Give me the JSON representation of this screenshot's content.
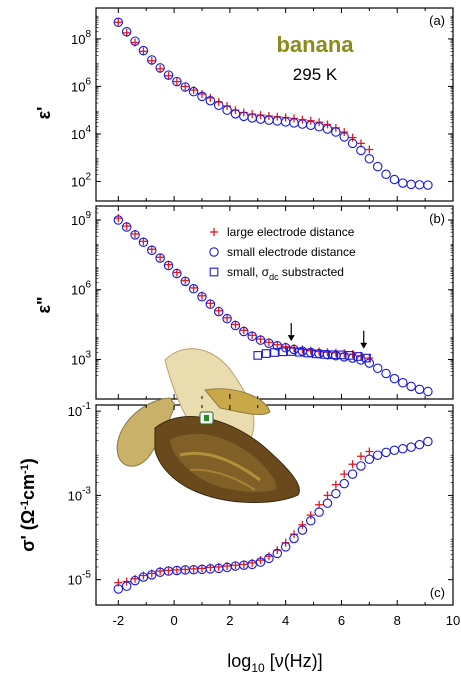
{
  "chart_data": [
    {
      "panel": "(a)",
      "type": "scatter",
      "title": "banana",
      "subtitle": "295 K",
      "xlabel": "log10 [ν(Hz)]",
      "ylabel": "ε'",
      "yscale": "log",
      "xlim": [
        -2.8,
        10
      ],
      "ylim": [
        15,
        2000000000
      ],
      "y_ticks": [
        {
          "v": 100,
          "label": "10",
          "exp": "2"
        },
        {
          "v": 10000,
          "label": "10",
          "exp": "4"
        },
        {
          "v": 1000000,
          "label": "10",
          "exp": "6"
        },
        {
          "v": 100000000,
          "label": "10",
          "exp": "8"
        }
      ],
      "series": [
        {
          "name": "large electrode distance",
          "marker": "plus",
          "color": "#e41a1c",
          "x": [
            -2.0,
            -1.7,
            -1.4,
            -1.1,
            -0.8,
            -0.5,
            -0.2,
            0.1,
            0.4,
            0.7,
            1.0,
            1.3,
            1.6,
            1.9,
            2.2,
            2.5,
            2.8,
            3.1,
            3.4,
            3.7,
            4.0,
            4.3,
            4.6,
            4.9,
            5.2,
            5.5,
            5.8,
            6.1,
            6.4,
            6.7,
            7.0
          ],
          "y": [
            500000000,
            180000000,
            70000000,
            30000000,
            12000000,
            5500000,
            2800000,
            1600000,
            1000000,
            700000,
            480000,
            330000,
            220000,
            150000,
            100000,
            80000,
            68000,
            62000,
            57000,
            53000,
            49000,
            45000,
            40000,
            36000,
            31000,
            25000,
            18000,
            12000,
            7000,
            4000,
            2200
          ]
        },
        {
          "name": "small electrode distance",
          "marker": "circle",
          "color": "#1a1adb",
          "x": [
            -2.0,
            -1.7,
            -1.4,
            -1.1,
            -0.8,
            -0.5,
            -0.2,
            0.1,
            0.4,
            0.7,
            1.0,
            1.3,
            1.6,
            1.9,
            2.2,
            2.5,
            2.8,
            3.1,
            3.4,
            3.7,
            4.0,
            4.3,
            4.6,
            4.9,
            5.2,
            5.5,
            5.8,
            6.1,
            6.4,
            6.7,
            7.0,
            7.3,
            7.6,
            7.9,
            8.2,
            8.5,
            8.8,
            9.1
          ],
          "y": [
            500000000,
            200000000,
            80000000,
            32000000,
            13000000,
            6000000,
            3000000,
            1600000,
            950000,
            600000,
            380000,
            250000,
            160000,
            100000,
            70000,
            55000,
            47000,
            42000,
            38000,
            35000,
            32000,
            29000,
            26000,
            23000,
            20000,
            16000,
            12000,
            7500,
            4000,
            2000,
            900,
            420,
            200,
            120,
            85,
            75,
            72,
            70
          ]
        }
      ]
    },
    {
      "panel": "(b)",
      "type": "scatter",
      "xlabel": "log10 [ν(Hz)]",
      "ylabel": "ε\"",
      "yscale": "log",
      "xlim": [
        -2.8,
        10
      ],
      "ylim": [
        20,
        4000000000
      ],
      "y_ticks": [
        {
          "v": 1000,
          "label": "10",
          "exp": "3"
        },
        {
          "v": 1000000,
          "label": "10",
          "exp": "6"
        },
        {
          "v": 1000000000,
          "label": "10",
          "exp": "9"
        }
      ],
      "arrows_x": [
        4.2,
        6.8
      ],
      "series": [
        {
          "name": "large electrode distance",
          "marker": "plus",
          "color": "#e41a1c",
          "x": [
            -2.0,
            -1.7,
            -1.4,
            -1.1,
            -0.8,
            -0.5,
            -0.2,
            0.1,
            0.4,
            0.7,
            1.0,
            1.3,
            1.6,
            1.9,
            2.2,
            2.5,
            2.8,
            3.1,
            3.4,
            3.7,
            4.0,
            4.3,
            4.6,
            4.9,
            5.2,
            5.5,
            5.8,
            6.1,
            6.4,
            6.7,
            7.0
          ],
          "y": [
            1200000000,
            550000000,
            250000000,
            120000000,
            55000000,
            25000000,
            12000000,
            5500000,
            2500000,
            1200000,
            550000,
            260000,
            125000,
            62000,
            32000,
            18000,
            11000,
            7500,
            5500,
            4300,
            3600,
            3100,
            2700,
            2400,
            2200,
            2050,
            1950,
            1850,
            1700,
            1450,
            1150
          ]
        },
        {
          "name": "small electrode distance",
          "marker": "circle",
          "color": "#1a1adb",
          "x": [
            -2.0,
            -1.7,
            -1.4,
            -1.1,
            -0.8,
            -0.5,
            -0.2,
            0.1,
            0.4,
            0.7,
            1.0,
            1.3,
            1.6,
            1.9,
            2.2,
            2.5,
            2.8,
            3.1,
            3.4,
            3.7,
            4.0,
            4.3,
            4.6,
            4.9,
            5.2,
            5.5,
            5.8,
            6.1,
            6.4,
            6.7,
            7.0,
            7.3,
            7.6,
            7.9,
            8.2,
            8.5,
            8.8,
            9.1
          ],
          "y": [
            1000000000,
            500000000,
            230000000,
            110000000,
            50000000,
            23000000,
            11000000,
            5000000,
            2300000,
            1100000,
            500000,
            240000,
            115000,
            57000,
            29000,
            16000,
            10000,
            6800,
            5000,
            3900,
            3200,
            2700,
            2300,
            2000,
            1800,
            1600,
            1450,
            1300,
            1150,
            950,
            700,
            420,
            250,
            150,
            100,
            70,
            52,
            42
          ]
        },
        {
          "name": "small, σdc substracted",
          "marker": "square",
          "color": "#1a1adb",
          "x": [
            3.0,
            3.3,
            3.6,
            3.9,
            4.2,
            4.5,
            4.8,
            5.1,
            5.4,
            5.7,
            6.0,
            6.3,
            6.6,
            6.9
          ],
          "y": [
            1500,
            1800,
            2000,
            2150,
            2200,
            2050,
            1900,
            1750,
            1650,
            1600,
            1580,
            1500,
            1350,
            1150
          ]
        }
      ],
      "legend": [
        {
          "marker": "plus",
          "text": "large electrode distance"
        },
        {
          "marker": "circle",
          "text": "small electrode distance"
        },
        {
          "marker": "square",
          "text": "small, σ",
          "sub": "dc",
          "after": " substracted"
        }
      ]
    },
    {
      "panel": "(c)",
      "type": "scatter",
      "xlabel": "log10 [ν(Hz)]",
      "ylabel": "σ' (Ω⁻¹cm⁻¹)",
      "yscale": "log",
      "xlim": [
        -2.8,
        10
      ],
      "ylim": [
        2.5e-06,
        0.14
      ],
      "y_ticks": [
        {
          "v": 1e-05,
          "label": "10",
          "exp": "-5"
        },
        {
          "v": 0.001,
          "label": "10",
          "exp": "-3"
        },
        {
          "v": 0.1,
          "label": "10",
          "exp": "-1"
        }
      ],
      "x_ticks": [
        -2,
        0,
        2,
        4,
        6,
        8,
        10
      ],
      "series": [
        {
          "name": "large electrode distance",
          "marker": "plus",
          "color": "#e41a1c",
          "x": [
            -2.0,
            -1.7,
            -1.4,
            -1.1,
            -0.8,
            -0.5,
            -0.2,
            0.1,
            0.4,
            0.7,
            1.0,
            1.3,
            1.6,
            1.9,
            2.2,
            2.5,
            2.8,
            3.1,
            3.4,
            3.7,
            4.0,
            4.3,
            4.6,
            4.9,
            5.2,
            5.5,
            5.8,
            6.1,
            6.4,
            6.7,
            7.0
          ],
          "y": [
            8.5e-06,
            9e-06,
            1.05e-05,
            1.25e-05,
            1.4e-05,
            1.6e-05,
            1.65e-05,
            1.7e-05,
            1.75e-05,
            1.8e-05,
            1.85e-05,
            1.95e-05,
            2e-05,
            2.1e-05,
            2.2e-05,
            2.3e-05,
            2.5e-05,
            2.9e-05,
            3.6e-05,
            5e-05,
            7.5e-05,
            0.00012,
            0.0002,
            0.00034,
            0.0006,
            0.001,
            0.0018,
            0.0032,
            0.0055,
            0.0085,
            0.011
          ]
        },
        {
          "name": "small electrode distance",
          "marker": "circle",
          "color": "#1a1adb",
          "x": [
            -2.0,
            -1.7,
            -1.4,
            -1.1,
            -0.8,
            -0.5,
            -0.2,
            0.1,
            0.4,
            0.7,
            1.0,
            1.3,
            1.6,
            1.9,
            2.2,
            2.5,
            2.8,
            3.1,
            3.4,
            3.7,
            4.0,
            4.3,
            4.6,
            4.9,
            5.2,
            5.5,
            5.8,
            6.1,
            6.4,
            6.7,
            7.0,
            7.3,
            7.6,
            7.9,
            8.2,
            8.5,
            8.8,
            9.1
          ],
          "y": [
            6e-06,
            7e-06,
            9.5e-06,
            1.15e-05,
            1.3e-05,
            1.5e-05,
            1.6e-05,
            1.65e-05,
            1.7e-05,
            1.72e-05,
            1.75e-05,
            1.8e-05,
            1.85e-05,
            1.95e-05,
            2.1e-05,
            2.2e-05,
            2.3e-05,
            2.6e-05,
            3.2e-05,
            4.2e-05,
            6e-05,
            9.5e-05,
            0.00015,
            0.00025,
            0.0004,
            0.00065,
            0.0011,
            0.0019,
            0.0032,
            0.005,
            0.0072,
            0.009,
            0.0105,
            0.0118,
            0.0128,
            0.014,
            0.016,
            0.019
          ]
        }
      ]
    }
  ]
}
